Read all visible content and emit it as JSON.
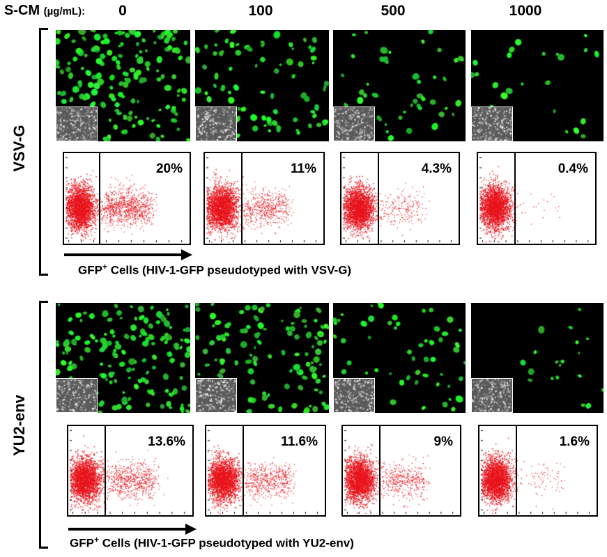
{
  "header": {
    "label": "S-CM",
    "unit": "(µg/mL):",
    "concentrations": [
      "0",
      "100",
      "500",
      "1000"
    ]
  },
  "colors": {
    "gfp_green": "#22d43a",
    "facs_red": "#e8141c",
    "micro_bg": "#000000"
  },
  "rows": [
    {
      "label": "VSV-G",
      "density": [
        1.0,
        0.55,
        0.3,
        0.15
      ],
      "percentages": [
        "20%",
        "11%",
        "4.3%",
        "0.4%"
      ],
      "pct_values": [
        20,
        11,
        4.3,
        0.4
      ],
      "caption_prefix": "GFP",
      "caption_sup": "+",
      "caption_suffix": " Cells (HIV-1-GFP pseudotyped with VSV-G)"
    },
    {
      "label": "YU2-env",
      "density": [
        1.0,
        0.8,
        0.35,
        0.15
      ],
      "percentages": [
        "13.6%",
        "11.6%",
        "9%",
        "1.6%"
      ],
      "pct_values": [
        13.6,
        11.6,
        9,
        1.6
      ],
      "caption_prefix": "GFP",
      "caption_sup": "+",
      "caption_suffix": " Cells (HIV-1-GFP pseudotyped with YU2-env)"
    }
  ]
}
